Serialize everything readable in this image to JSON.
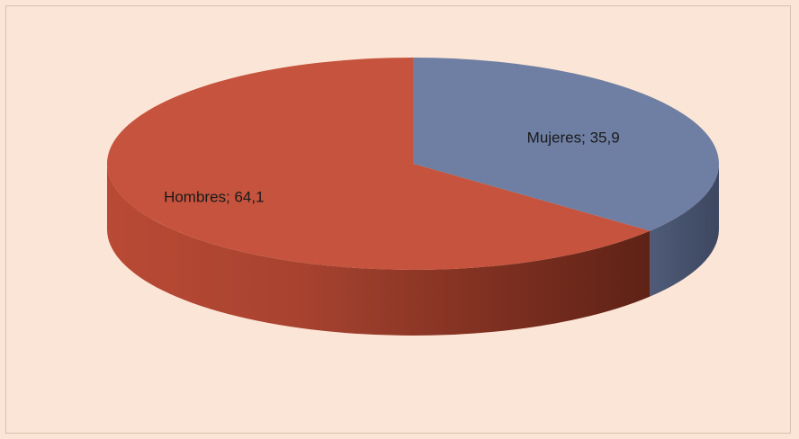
{
  "chart_data": {
    "type": "pie",
    "style": "3d",
    "slices": [
      {
        "label": "Mujeres",
        "value": 35.9,
        "display": "Mujeres; 35,9",
        "color": "#6e7fa3"
      },
      {
        "label": "Hombres",
        "value": 64.1,
        "display": "Hombres; 64,1",
        "color": "#c5533d"
      }
    ],
    "title": "",
    "legend": "none",
    "background_color": "#fbe5d6"
  }
}
